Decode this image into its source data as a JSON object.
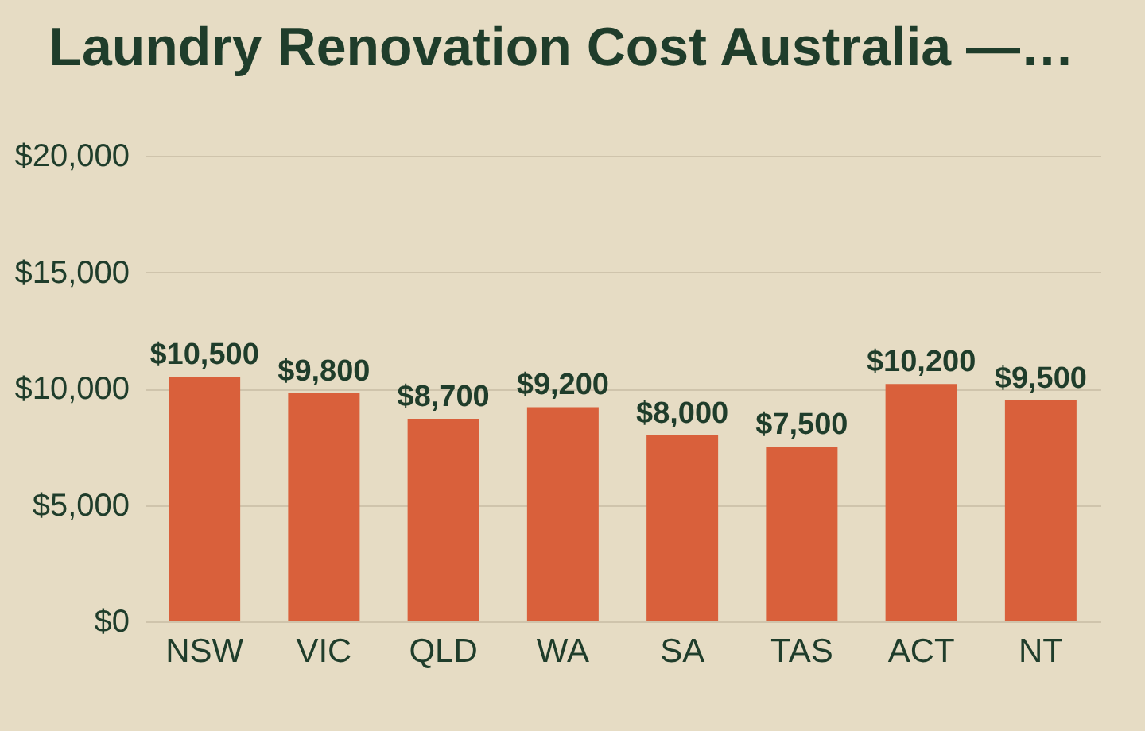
{
  "chart_data": {
    "type": "bar",
    "title": "Laundry Renovation Cost Australia —…",
    "categories": [
      "NSW",
      "VIC",
      "QLD",
      "WA",
      "SA",
      "TAS",
      "ACT",
      "NT"
    ],
    "values": [
      10500,
      9800,
      8700,
      9200,
      8000,
      7500,
      10200,
      9500
    ],
    "value_labels": [
      "$10,500",
      "$9,800",
      "$8,700",
      "$9,200",
      "$8,000",
      "$7,500",
      "$10,200",
      "$9,500"
    ],
    "color": "#d9603b",
    "ylim": [
      0,
      20000
    ],
    "yticks": [
      {
        "value": 0,
        "label": "$0"
      },
      {
        "value": 5000,
        "label": "$5,000"
      },
      {
        "value": 10000,
        "label": "$10,000"
      },
      {
        "value": 15000,
        "label": "$15,000"
      },
      {
        "value": 20000,
        "label": "$20,000"
      }
    ],
    "grid": "y"
  }
}
